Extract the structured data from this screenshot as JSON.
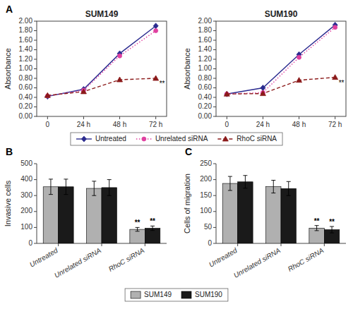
{
  "chart_data": [
    {
      "type": "line",
      "title": "SUM149",
      "y_label": "Absorbance",
      "categories": [
        "0",
        "24 h",
        "48 h",
        "72 h"
      ],
      "ylim": [
        0.0,
        2.0
      ],
      "yticks": [
        {
          "value": 0.0,
          "label": "0.00"
        },
        {
          "value": 0.2,
          "label": "0.20"
        },
        {
          "value": 0.4,
          "label": "0.40"
        },
        {
          "value": 0.6,
          "label": "0.60"
        },
        {
          "value": 0.8,
          "label": "0.80"
        },
        {
          "value": 1.0,
          "label": "1.00"
        },
        {
          "value": 1.2,
          "label": "1.20"
        },
        {
          "value": 1.4,
          "label": "1.40"
        },
        {
          "value": 1.6,
          "label": "1.60"
        },
        {
          "value": 1.8,
          "label": "1.80"
        },
        {
          "value": 2.0,
          "label": "2.00"
        }
      ],
      "grid": false,
      "legend": "bottom",
      "series": [
        {
          "name": "Untreated",
          "color": "#2b2b8f",
          "marker": "diamond",
          "line_style": "solid",
          "values": [
            0.42,
            0.57,
            1.32,
            1.9
          ]
        },
        {
          "name": "Unrelated siRNA",
          "color": "#e040a0",
          "marker": "circle",
          "line_style": "dotted",
          "values": [
            0.43,
            0.55,
            1.27,
            1.8
          ]
        },
        {
          "name": "RhoC siRNA",
          "color": "#8b1a1a",
          "marker": "triangle",
          "line_style": "dashed",
          "values": [
            0.44,
            0.52,
            0.77,
            0.8
          ]
        }
      ],
      "annotations": [
        {
          "text": "A"
        },
        {
          "text": "**",
          "category": "72 h",
          "series": "RhoC siRNA"
        }
      ]
    },
    {
      "type": "line",
      "title": "SUM190",
      "y_label": "Absorbance",
      "categories": [
        "0",
        "24 h",
        "48 h",
        "72 h"
      ],
      "ylim": [
        0.0,
        2.0
      ],
      "yticks": [
        {
          "value": 0.0,
          "label": "0.00"
        },
        {
          "value": 0.2,
          "label": "0.20"
        },
        {
          "value": 0.4,
          "label": "0.40"
        },
        {
          "value": 0.6,
          "label": "0.60"
        },
        {
          "value": 0.8,
          "label": "0.80"
        },
        {
          "value": 1.0,
          "label": "1.00"
        },
        {
          "value": 1.2,
          "label": "1.20"
        },
        {
          "value": 1.4,
          "label": "1.40"
        },
        {
          "value": 1.6,
          "label": "1.60"
        },
        {
          "value": 1.8,
          "label": "1.80"
        },
        {
          "value": 2.0,
          "label": "2.00"
        }
      ],
      "grid": false,
      "series": [
        {
          "name": "Untreated",
          "color": "#2b2b8f",
          "marker": "diamond",
          "line_style": "solid",
          "values": [
            0.47,
            0.6,
            1.3,
            1.92
          ]
        },
        {
          "name": "Unrelated siRNA",
          "color": "#e040a0",
          "marker": "circle",
          "line_style": "dotted",
          "values": [
            0.47,
            0.5,
            1.24,
            1.87
          ]
        },
        {
          "name": "RhoC siRNA",
          "color": "#8b1a1a",
          "marker": "triangle",
          "line_style": "dashed",
          "values": [
            0.47,
            0.48,
            0.76,
            0.82
          ]
        }
      ],
      "annotations": [
        {
          "text": "**",
          "category": "72 h",
          "series": "RhoC siRNA"
        }
      ]
    },
    {
      "type": "bar",
      "y_label": "Invasive cells",
      "categories": [
        "Untreated",
        "Unrelated siRNA",
        "RhoC siRNA"
      ],
      "ylim": [
        0,
        500
      ],
      "yticks": [
        0,
        100,
        200,
        300,
        400,
        500
      ],
      "grid": false,
      "legend": "bottom",
      "series": [
        {
          "name": "SUM149",
          "color": "#b0b0b0",
          "values": [
            355,
            345,
            88
          ],
          "errors": [
            48,
            45,
            12
          ]
        },
        {
          "name": "SUM190",
          "color": "#1a1a1a",
          "values": [
            355,
            350,
            95
          ],
          "errors": [
            48,
            50,
            14
          ]
        }
      ],
      "annotations": [
        {
          "text": "B"
        },
        {
          "text": "**",
          "category": "RhoC siRNA",
          "series": "SUM149"
        },
        {
          "text": "**",
          "category": "RhoC siRNA",
          "series": "SUM190"
        }
      ]
    },
    {
      "type": "bar",
      "y_label": "Cells of migration",
      "categories": [
        "Untreated",
        "Unrelated siRNA",
        "RhoC siRNA"
      ],
      "ylim": [
        0,
        250
      ],
      "yticks": [
        0,
        50,
        100,
        150,
        200,
        250
      ],
      "grid": false,
      "series": [
        {
          "name": "SUM149",
          "color": "#b0b0b0",
          "values": [
            188,
            178,
            48
          ],
          "errors": [
            22,
            20,
            8
          ]
        },
        {
          "name": "SUM190",
          "color": "#1a1a1a",
          "values": [
            193,
            172,
            43
          ],
          "errors": [
            20,
            22,
            10
          ]
        }
      ],
      "annotations": [
        {
          "text": "C"
        },
        {
          "text": "**",
          "category": "RhoC siRNA",
          "series": "SUM149"
        },
        {
          "text": "**",
          "category": "RhoC siRNA",
          "series": "SUM190"
        }
      ]
    }
  ]
}
